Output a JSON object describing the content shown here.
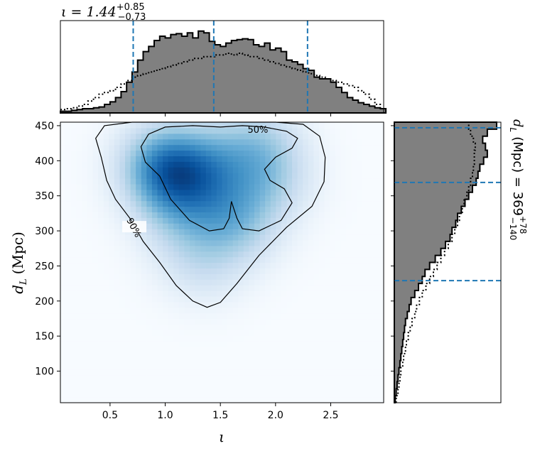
{
  "chart_data": [
    {
      "type": "heatmap",
      "description_of_axes": "joint 2D density of inclination and luminosity distance",
      "xlabel": "ι",
      "ylabel_main": "d",
      "ylabel_sub": "L",
      "ylabel_unit": "(Mpc)",
      "xlim": [
        0.05,
        2.98
      ],
      "ylim": [
        55,
        455
      ],
      "xticks": [
        0.5,
        1.0,
        1.5,
        2.0,
        2.5
      ],
      "xtick_labels": [
        "0.5",
        "1.0",
        "1.5",
        "2.0",
        "2.5"
      ],
      "yticks": [
        100,
        150,
        200,
        250,
        300,
        350,
        400,
        450
      ],
      "ytick_labels": [
        "100",
        "150",
        "200",
        "250",
        "300",
        "350",
        "400",
        "450"
      ],
      "colormap": "Blues",
      "density_blobs": [
        {
          "x": 0.98,
          "y": 400,
          "weight": 1.0
        },
        {
          "x": 1.08,
          "y": 360,
          "weight": 0.85
        },
        {
          "x": 1.4,
          "y": 395,
          "weight": 0.7
        },
        {
          "x": 1.85,
          "y": 425,
          "weight": 0.6
        },
        {
          "x": 1.55,
          "y": 330,
          "weight": 0.55
        },
        {
          "x": 1.95,
          "y": 370,
          "weight": 0.5
        },
        {
          "x": 1.35,
          "y": 250,
          "weight": 0.35
        },
        {
          "x": 1.7,
          "y": 300,
          "weight": 0.35
        },
        {
          "x": 1.15,
          "y": 300,
          "weight": 0.3
        }
      ],
      "contours": [
        {
          "label": "50%",
          "label_at": [
            1.84,
            445
          ],
          "points": [
            [
              0.85,
              438
            ],
            [
              0.78,
              420
            ],
            [
              0.82,
              398
            ],
            [
              0.95,
              378
            ],
            [
              1.05,
              345
            ],
            [
              1.22,
              315
            ],
            [
              1.4,
              300
            ],
            [
              1.53,
              303
            ],
            [
              1.58,
              318
            ],
            [
              1.6,
              342
            ],
            [
              1.65,
              318
            ],
            [
              1.7,
              303
            ],
            [
              1.85,
              300
            ],
            [
              2.05,
              315
            ],
            [
              2.15,
              340
            ],
            [
              2.08,
              360
            ],
            [
              1.95,
              372
            ],
            [
              1.9,
              388
            ],
            [
              2.0,
              405
            ],
            [
              2.15,
              418
            ],
            [
              2.2,
              432
            ],
            [
              2.1,
              442
            ],
            [
              1.9,
              448
            ],
            [
              1.7,
              450
            ],
            [
              1.5,
              448
            ],
            [
              1.25,
              450
            ],
            [
              1.0,
              448
            ],
            [
              0.85,
              438
            ]
          ]
        },
        {
          "label": "90%",
          "label_at": [
            0.72,
            305
          ],
          "points": [
            [
              0.45,
              450
            ],
            [
              0.37,
              432
            ],
            [
              0.42,
              405
            ],
            [
              0.47,
              372
            ],
            [
              0.55,
              345
            ],
            [
              0.68,
              318
            ],
            [
              0.8,
              285
            ],
            [
              0.95,
              255
            ],
            [
              1.1,
              222
            ],
            [
              1.25,
              200
            ],
            [
              1.38,
              191
            ],
            [
              1.5,
              198
            ],
            [
              1.65,
              225
            ],
            [
              1.85,
              265
            ],
            [
              2.1,
              305
            ],
            [
              2.33,
              335
            ],
            [
              2.44,
              370
            ],
            [
              2.45,
              405
            ],
            [
              2.4,
              435
            ],
            [
              2.25,
              452
            ],
            [
              2.0,
              455
            ],
            [
              1.5,
              455
            ],
            [
              1.0,
              455
            ],
            [
              0.7,
              455
            ],
            [
              0.45,
              450
            ]
          ]
        }
      ],
      "lines_color": "#1f77b4"
    },
    {
      "type": "bar",
      "panel": "top marginal",
      "title_main": "ι = 1.44",
      "title_sup": "+0.85",
      "title_sub": "−0.73",
      "bin_edges_start": 0.05,
      "bin_width": 0.05,
      "values": [
        0.02,
        0.02,
        0.03,
        0.04,
        0.05,
        0.05,
        0.06,
        0.07,
        0.1,
        0.13,
        0.18,
        0.25,
        0.36,
        0.48,
        0.62,
        0.72,
        0.78,
        0.85,
        0.9,
        0.88,
        0.92,
        0.93,
        0.9,
        0.94,
        0.88,
        0.96,
        0.94,
        0.84,
        0.8,
        0.78,
        0.82,
        0.85,
        0.86,
        0.87,
        0.86,
        0.8,
        0.78,
        0.82,
        0.74,
        0.76,
        0.72,
        0.62,
        0.6,
        0.57,
        0.52,
        0.5,
        0.42,
        0.4,
        0.4,
        0.36,
        0.3,
        0.24,
        0.18,
        0.15,
        0.12,
        0.1,
        0.08,
        0.06,
        0.05
      ],
      "comparison_values": [
        0.04,
        0.05,
        0.06,
        0.08,
        0.1,
        0.14,
        0.18,
        0.22,
        0.24,
        0.26,
        0.3,
        0.34,
        0.38,
        0.42,
        0.44,
        0.46,
        0.48,
        0.5,
        0.52,
        0.54,
        0.56,
        0.58,
        0.6,
        0.62,
        0.64,
        0.64,
        0.66,
        0.66,
        0.68,
        0.68,
        0.7,
        0.68,
        0.7,
        0.68,
        0.66,
        0.66,
        0.64,
        0.62,
        0.6,
        0.58,
        0.56,
        0.54,
        0.52,
        0.5,
        0.48,
        0.46,
        0.44,
        0.42,
        0.4,
        0.38,
        0.36,
        0.34,
        0.32,
        0.3,
        0.26,
        0.22,
        0.16,
        0.1,
        0.05
      ],
      "markers": [
        0.71,
        1.44,
        2.29
      ],
      "fill_color": "#808080",
      "marker_color": "#1f77b4"
    },
    {
      "type": "bar",
      "panel": "right marginal",
      "title_main": "d",
      "title_sub_L": "L",
      "title_rest": "(Mpc) = 369",
      "title_sup": "+78",
      "title_sub": "−140",
      "bin_edges_start": 55,
      "bin_width": 10,
      "values": [
        0.01,
        0.02,
        0.03,
        0.04,
        0.05,
        0.06,
        0.07,
        0.08,
        0.09,
        0.1,
        0.11,
        0.12,
        0.14,
        0.16,
        0.18,
        0.22,
        0.26,
        0.3,
        0.33,
        0.38,
        0.44,
        0.5,
        0.55,
        0.6,
        0.62,
        0.66,
        0.68,
        0.72,
        0.76,
        0.8,
        0.84,
        0.88,
        0.9,
        0.92,
        0.96,
        1.0,
        0.98,
        0.95,
        1.0,
        1.1
      ],
      "comparison_values": [
        0.02,
        0.04,
        0.05,
        0.06,
        0.07,
        0.09,
        0.1,
        0.12,
        0.13,
        0.15,
        0.17,
        0.19,
        0.22,
        0.24,
        0.27,
        0.3,
        0.34,
        0.38,
        0.42,
        0.46,
        0.5,
        0.54,
        0.58,
        0.62,
        0.65,
        0.68,
        0.7,
        0.73,
        0.75,
        0.78,
        0.8,
        0.82,
        0.84,
        0.85,
        0.86,
        0.86,
        0.87,
        0.85,
        0.82,
        0.8
      ],
      "markers": [
        229,
        369,
        447
      ],
      "fill_color": "#808080",
      "marker_color": "#1f77b4"
    }
  ]
}
